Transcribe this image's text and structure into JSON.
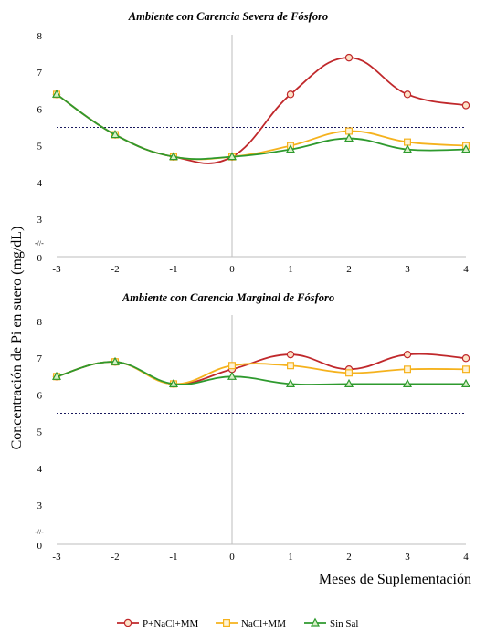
{
  "ylabel": "Concentración de Pi en suero (mg/dL)",
  "xlabel": "Meses de Suplementación",
  "axis_break": "-//-",
  "legend_entries": [
    "P+NaCl+MM",
    "NaCl+MM",
    "Sin Sal"
  ],
  "colors": {
    "P+NaCl+MM": "#c0282b",
    "NaCl+MM": "#f5b21d",
    "Sin Sal": "#2e9a2e",
    "threshold": "#1a1a5e"
  },
  "chart_data": [
    {
      "type": "line",
      "title": "Ambiente con Carencia Severa de Fósforo",
      "x": [
        -3,
        -2,
        -1,
        0,
        1,
        2,
        3,
        4
      ],
      "yticks": [
        0,
        3,
        4,
        5,
        6,
        7,
        8
      ],
      "ylim": [
        2.7,
        8
      ],
      "threshold": 5.5,
      "series": [
        {
          "name": "P+NaCl+MM",
          "marker": "circle",
          "values": [
            6.4,
            5.3,
            4.7,
            4.7,
            6.4,
            7.4,
            6.4,
            6.1
          ]
        },
        {
          "name": "NaCl+MM",
          "marker": "square",
          "values": [
            6.4,
            5.3,
            4.7,
            4.7,
            5.0,
            5.4,
            5.1,
            5.0
          ]
        },
        {
          "name": "Sin Sal",
          "marker": "triangle",
          "values": [
            6.4,
            5.3,
            4.7,
            4.7,
            4.9,
            5.2,
            4.9,
            4.9
          ]
        }
      ]
    },
    {
      "type": "line",
      "title": "Ambiente con Carencia Marginal de Fósforo",
      "x": [
        -3,
        -2,
        -1,
        0,
        1,
        2,
        3,
        4
      ],
      "yticks": [
        0,
        3,
        4,
        5,
        6,
        7,
        8
      ],
      "ylim": [
        2.7,
        8
      ],
      "threshold": 5.5,
      "series": [
        {
          "name": "P+NaCl+MM",
          "marker": "circle",
          "values": [
            6.5,
            6.9,
            6.3,
            6.7,
            7.1,
            6.7,
            7.1,
            7.0
          ]
        },
        {
          "name": "NaCl+MM",
          "marker": "square",
          "values": [
            6.5,
            6.9,
            6.3,
            6.8,
            6.8,
            6.6,
            6.7,
            6.7
          ]
        },
        {
          "name": "Sin Sal",
          "marker": "triangle",
          "values": [
            6.5,
            6.9,
            6.3,
            6.5,
            6.3,
            6.3,
            6.3,
            6.3
          ]
        }
      ]
    }
  ]
}
